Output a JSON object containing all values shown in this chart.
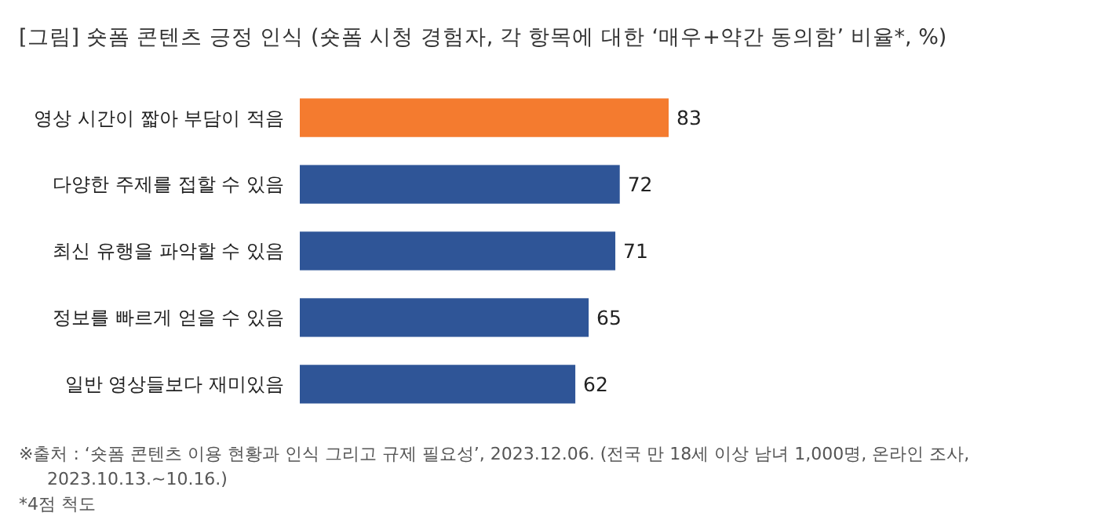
{
  "chart_data": {
    "type": "bar",
    "orientation": "horizontal",
    "title": "[그림] 숏폼 콘텐츠 긍정 인식 (숏폼 시청 경험자, 각 항목에 대한 ‘매우+약간 동의함’ 비율*, %)",
    "categories": [
      "영상 시간이 짧아 부담이 적음",
      "다양한 주제를 접할 수 있음",
      "최신 유행을 파악할 수 있음",
      "정보를 빠르게 얻을 수 있음",
      "일반 영상들보다 재미있음"
    ],
    "values": [
      83,
      72,
      71,
      65,
      62
    ],
    "colors": [
      "#f47b2f",
      "#2f5597",
      "#2f5597",
      "#2f5597",
      "#2f5597"
    ],
    "tick_labels": "y",
    "data_labels": true,
    "annotations": [
      "※출처 : ‘숏폼 콘텐츠 이용 현황과 인식 그리고 규제 필요성’, 2023.12.06. (전국 만 18세 이상 남녀 1,000명, 온라인 조사,",
      "2023.10.13.~10.16.)",
      "*4점 척도"
    ]
  }
}
